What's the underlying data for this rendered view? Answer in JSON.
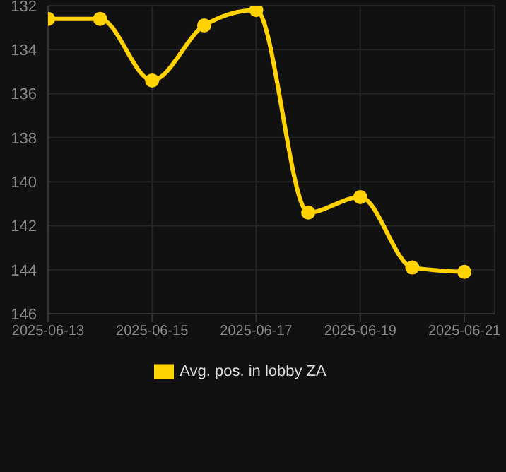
{
  "chart_data": {
    "type": "line",
    "x": [
      "2025-06-13",
      "2025-06-14",
      "2025-06-15",
      "2025-06-16",
      "2025-06-17",
      "2025-06-18",
      "2025-06-19",
      "2025-06-20",
      "2025-06-21"
    ],
    "series": [
      {
        "name": "Avg. pos. in lobby ZA",
        "color": "#ffd200",
        "values": [
          132.6,
          132.6,
          135.4,
          132.9,
          132.2,
          141.4,
          140.7,
          143.9,
          144.1
        ]
      }
    ],
    "xlim": [
      "2025-06-13",
      "2025-06-21T14:00"
    ],
    "xticks": [
      "2025-06-13",
      "2025-06-15",
      "2025-06-17",
      "2025-06-19",
      "2025-06-21"
    ],
    "ylim": [
      146,
      132
    ],
    "yticks": [
      132,
      134,
      136,
      138,
      140,
      142,
      144,
      146
    ],
    "grid": true,
    "legend": "bottom",
    "marker": "circle",
    "line_style": "solid"
  }
}
